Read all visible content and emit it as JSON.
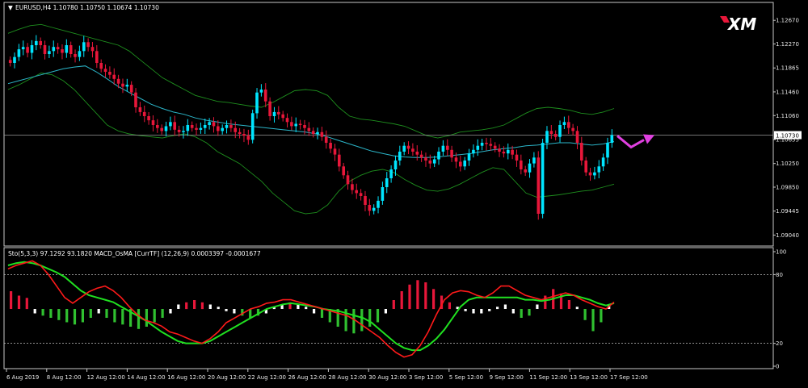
{
  "header": {
    "menu_arrow": "▼",
    "instrument_line": "EURUSD,H4  1.10780 1.10750 1.10674 1.10730",
    "indicator_line": "Sto(5,3,3) 97.1292 93.1820  MACD_OsMA [CurrTF] (12,26,9) 0.0003397 -0.0001677",
    "logo_text": "XM"
  },
  "colors": {
    "background": "#000000",
    "bull_candle": "#00e5ff",
    "bear_candle": "#e8173a",
    "bollinger": "#1e8f1e",
    "moving_average": "#2bb5c8",
    "price_line": "#9a9a9a",
    "price_tag_bg": "#ffffff",
    "forecast_arrow": "#e040e0",
    "stoch_main": "#ff1a1a",
    "stoch_signal": "#20e020",
    "osma_positive": "#e8173a",
    "osma_negative": "#30c030",
    "osma_neutral": "#ffffff",
    "axis_text": "#e6e6e6"
  },
  "chart_data": [
    {
      "type": "candlestick",
      "title": "EURUSD,H4",
      "y_ticks": [
        "1.12670",
        "1.12270",
        "1.11865",
        "1.11460",
        "1.11060",
        "1.10655",
        "1.10250",
        "1.09850",
        "1.09445",
        "1.09040"
      ],
      "ylim": [
        1.0895,
        1.1285
      ],
      "current_price_label": "1.10730",
      "current_price": 1.1073,
      "x_ticks": [
        "6 Aug 2019",
        "8 Aug 12:00",
        "12 Aug 12:00",
        "14 Aug 12:00",
        "16 Aug 12:00",
        "20 Aug 12:00",
        "22 Aug 12:00",
        "26 Aug 12:00",
        "28 Aug 12:00",
        "30 Aug 12:00",
        "3 Sep 12:00",
        "5 Sep 12:00",
        "9 Sep 12:00",
        "11 Sep 12:00",
        "13 Sep 12:00",
        "17 Sep 12:00"
      ],
      "closes": [
        1.1195,
        1.1205,
        1.1218,
        1.1222,
        1.1212,
        1.1225,
        1.1232,
        1.1225,
        1.121,
        1.1215,
        1.1222,
        1.1218,
        1.1212,
        1.1225,
        1.121,
        1.1205,
        1.1215,
        1.123,
        1.1222,
        1.1215,
        1.1195,
        1.1185,
        1.118,
        1.1175,
        1.1168,
        1.116,
        1.1155,
        1.1158,
        1.1145,
        1.112,
        1.1112,
        1.1105,
        1.1098,
        1.109,
        1.1085,
        1.108,
        1.1088,
        1.1095,
        1.1082,
        1.1078,
        1.108,
        1.109,
        1.1085,
        1.1082,
        1.1085,
        1.109,
        1.1095,
        1.1088,
        1.108,
        1.1085,
        1.109,
        1.1085,
        1.1078,
        1.1075,
        1.1072,
        1.1065,
        1.111,
        1.1145,
        1.115,
        1.113,
        1.1105,
        1.1112,
        1.1108,
        1.1102,
        1.1095,
        1.1088,
        1.1092,
        1.109,
        1.1085,
        1.108,
        1.1075,
        1.1078,
        1.107,
        1.106,
        1.105,
        1.104,
        1.102,
        1.1005,
        1.099,
        1.098,
        1.0975,
        1.097,
        1.0955,
        1.0945,
        1.095,
        1.0962,
        1.0985,
        1.1,
        1.1015,
        1.103,
        1.1045,
        1.1055,
        1.105,
        1.1045,
        1.104,
        1.1035,
        1.103,
        1.1025,
        1.1032,
        1.1045,
        1.1055,
        1.1048,
        1.1035,
        1.1028,
        1.102,
        1.103,
        1.1042,
        1.1048,
        1.1055,
        1.106,
        1.1058,
        1.1055,
        1.105,
        1.1045,
        1.1042,
        1.1048,
        1.104,
        1.103,
        1.1015,
        1.101,
        1.1025,
        1.1035,
        1.094,
        1.106,
        1.108,
        1.1075,
        1.107,
        1.109,
        1.1095,
        1.1085,
        1.108,
        1.106,
        1.103,
        1.101,
        1.1005,
        1.101,
        1.102,
        1.1035,
        1.106,
        1.1073
      ],
      "bollinger": {
        "upper": [
          1.1245,
          1.1252,
          1.1258,
          1.126,
          1.1255,
          1.125,
          1.1245,
          1.124,
          1.1235,
          1.123,
          1.1225,
          1.1215,
          1.12,
          1.1185,
          1.117,
          1.116,
          1.115,
          1.114,
          1.1135,
          1.113,
          1.1128,
          1.1125,
          1.1122,
          1.112,
          1.1128,
          1.1138,
          1.1148,
          1.115,
          1.1148,
          1.114,
          1.112,
          1.1105,
          1.11,
          1.1098,
          1.1095,
          1.1092,
          1.1088,
          1.108,
          1.1072,
          1.1068,
          1.1072,
          1.1078,
          1.108,
          1.1082,
          1.1085,
          1.109,
          1.11,
          1.111,
          1.1118,
          1.112,
          1.1118,
          1.1115,
          1.111,
          1.1108,
          1.1112,
          1.1118
        ],
        "lower": [
          1.115,
          1.1158,
          1.1168,
          1.1178,
          1.1175,
          1.1165,
          1.115,
          1.113,
          1.111,
          1.109,
          1.108,
          1.1075,
          1.1072,
          1.107,
          1.1068,
          1.1072,
          1.1075,
          1.107,
          1.106,
          1.1045,
          1.1035,
          1.1025,
          1.101,
          1.0995,
          1.0975,
          1.096,
          1.0945,
          1.094,
          1.0942,
          1.0955,
          1.0978,
          1.0995,
          1.1005,
          1.1012,
          1.1015,
          1.101,
          1.0998,
          1.0988,
          1.098,
          1.0978,
          1.0982,
          1.099,
          1.1,
          1.101,
          1.1018,
          1.1015,
          1.0995,
          1.0975,
          1.0968,
          1.097,
          1.0972,
          1.0975,
          1.0978,
          1.098,
          1.0985,
          1.099
        ]
      },
      "moving_average": [
        1.116,
        1.1165,
        1.117,
        1.1175,
        1.118,
        1.1185,
        1.1188,
        1.119,
        1.118,
        1.1168,
        1.1155,
        1.1145,
        1.1135,
        1.1125,
        1.1118,
        1.1112,
        1.1108,
        1.1102,
        1.1098,
        1.1095,
        1.1092,
        1.109,
        1.1088,
        1.1086,
        1.1084,
        1.1082,
        1.108,
        1.1078,
        1.1075,
        1.107,
        1.1064,
        1.1058,
        1.1052,
        1.1046,
        1.1042,
        1.1038,
        1.1036,
        1.1035,
        1.1035,
        1.1036,
        1.1038,
        1.104,
        1.1042,
        1.1045,
        1.1048,
        1.105,
        1.1052,
        1.1055,
        1.1056,
        1.1058,
        1.106,
        1.106,
        1.1058,
        1.1056,
        1.1058,
        1.1062
      ]
    },
    {
      "type": "oscillator",
      "title": "Sto(5,3,3) / MACD_OsMA",
      "y_ticks": [
        "100",
        "80",
        "20",
        "0"
      ],
      "levels": [
        80,
        20
      ],
      "ylim": [
        0,
        100
      ],
      "stoch_main": [
        85,
        88,
        90,
        92,
        88,
        80,
        70,
        60,
        55,
        60,
        65,
        68,
        70,
        66,
        60,
        52,
        45,
        40,
        38,
        35,
        30,
        28,
        25,
        22,
        20,
        24,
        30,
        38,
        42,
        46,
        50,
        52,
        55,
        56,
        58,
        58,
        56,
        54,
        52,
        50,
        48,
        46,
        44,
        40,
        35,
        30,
        25,
        18,
        12,
        8,
        10,
        18,
        30,
        45,
        58,
        64,
        66,
        65,
        62,
        60,
        64,
        70,
        70,
        66,
        62,
        60,
        58,
        60,
        62,
        64,
        62,
        58,
        55,
        52,
        50,
        56
      ],
      "stoch_signal": [
        88,
        90,
        91,
        90,
        88,
        85,
        82,
        78,
        72,
        66,
        62,
        60,
        58,
        56,
        52,
        48,
        44,
        40,
        35,
        30,
        26,
        22,
        20,
        20,
        20,
        22,
        26,
        30,
        34,
        38,
        42,
        46,
        50,
        52,
        54,
        55,
        54,
        53,
        52,
        50,
        49,
        48,
        46,
        44,
        42,
        38,
        32,
        26,
        20,
        16,
        14,
        14,
        18,
        24,
        32,
        42,
        52,
        58,
        60,
        60,
        60,
        60,
        60,
        60,
        58,
        58,
        57,
        58,
        60,
        62,
        62,
        60,
        58,
        55,
        53,
        55
      ],
      "osma": [
        0.4,
        0.3,
        0.25,
        -0.1,
        -0.15,
        -0.2,
        -0.25,
        -0.3,
        -0.35,
        -0.3,
        -0.2,
        -0.1,
        -0.2,
        -0.3,
        -0.35,
        -0.4,
        -0.45,
        -0.4,
        -0.3,
        -0.2,
        -0.1,
        0.1,
        0.15,
        0.2,
        0.15,
        0.1,
        0.05,
        -0.05,
        -0.1,
        -0.15,
        -0.2,
        -0.15,
        -0.1,
        0.05,
        0.1,
        0.15,
        0.1,
        0.05,
        -0.1,
        -0.2,
        -0.3,
        -0.4,
        -0.5,
        -0.55,
        -0.5,
        -0.4,
        -0.3,
        -0.1,
        0.2,
        0.4,
        0.55,
        0.65,
        0.6,
        0.45,
        0.3,
        0.15,
        0.05,
        -0.05,
        -0.1,
        -0.1,
        -0.05,
        0.05,
        0.1,
        -0.1,
        -0.2,
        -0.15,
        0.1,
        0.3,
        0.45,
        0.35,
        0.2,
        0.05,
        -0.25,
        -0.5,
        -0.3,
        0.1
      ]
    }
  ]
}
